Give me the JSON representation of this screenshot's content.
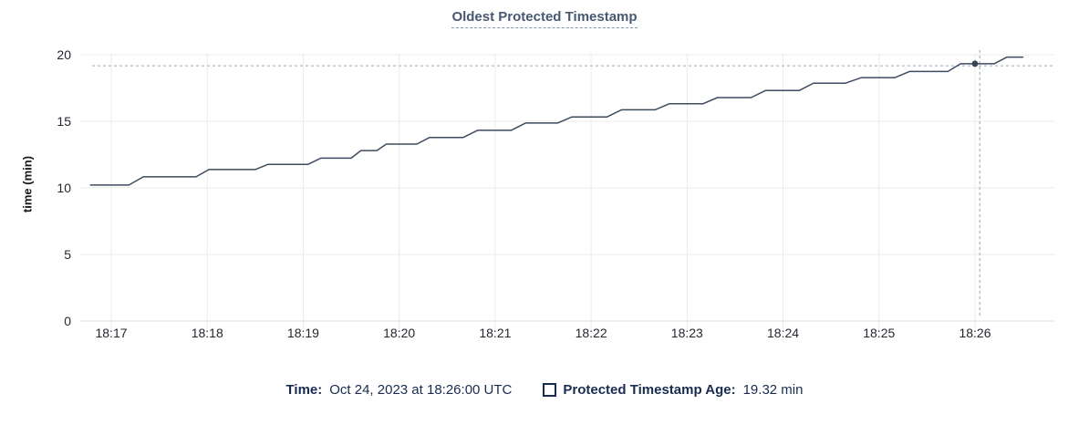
{
  "title": "Oldest Protected Timestamp",
  "y_axis": {
    "label": "time (min)",
    "ticks": [
      0,
      5,
      10,
      15,
      20
    ]
  },
  "x_axis": {
    "ticks": [
      {
        "t": 0,
        "label": "18:17"
      },
      {
        "t": 60,
        "label": "18:18"
      },
      {
        "t": 120,
        "label": "18:19"
      },
      {
        "t": 180,
        "label": "18:20"
      },
      {
        "t": 240,
        "label": "18:21"
      },
      {
        "t": 300,
        "label": "18:22"
      },
      {
        "t": 360,
        "label": "18:23"
      },
      {
        "t": 420,
        "label": "18:24"
      },
      {
        "t": 480,
        "label": "18:25"
      },
      {
        "t": 540,
        "label": "18:26"
      }
    ]
  },
  "tooltip": {
    "time_label": "Time:",
    "time_value": "Oct 24, 2023 at 18:26:00 UTC",
    "series_label": "Protected Timestamp Age:",
    "series_value": "19.32 min"
  },
  "chart_data": {
    "type": "line",
    "title": "Oldest Protected Timestamp",
    "xlabel": "",
    "ylabel": "time (min)",
    "ylim": [
      0,
      20
    ],
    "grid": true,
    "x_tick_labels": [
      "18:17",
      "18:18",
      "18:19",
      "18:20",
      "18:21",
      "18:22",
      "18:23",
      "18:24",
      "18:25",
      "18:26"
    ],
    "x_unit": "seconds_from_18:17:00_UTC",
    "series": [
      {
        "name": "Protected Timestamp Age",
        "unit": "min",
        "points": [
          [
            -13,
            10.21
          ],
          [
            11,
            10.21
          ],
          [
            20,
            10.83
          ],
          [
            53,
            10.83
          ],
          [
            61,
            11.38
          ],
          [
            90,
            11.38
          ],
          [
            98,
            11.77
          ],
          [
            123,
            11.77
          ],
          [
            131,
            12.23
          ],
          [
            150,
            12.23
          ],
          [
            156,
            12.8
          ],
          [
            166,
            12.8
          ],
          [
            172,
            13.29
          ],
          [
            191,
            13.29
          ],
          [
            199,
            13.79
          ],
          [
            220,
            13.79
          ],
          [
            229,
            14.32
          ],
          [
            250,
            14.32
          ],
          [
            259,
            14.87
          ],
          [
            279,
            14.87
          ],
          [
            288,
            15.33
          ],
          [
            310,
            15.33
          ],
          [
            319,
            15.86
          ],
          [
            340,
            15.86
          ],
          [
            349,
            16.32
          ],
          [
            370,
            16.32
          ],
          [
            379,
            16.78
          ],
          [
            400,
            16.78
          ],
          [
            409,
            17.31
          ],
          [
            430,
            17.31
          ],
          [
            439,
            17.86
          ],
          [
            459,
            17.86
          ],
          [
            469,
            18.28
          ],
          [
            490,
            18.28
          ],
          [
            499,
            18.74
          ],
          [
            523,
            18.74
          ],
          [
            531,
            19.32
          ],
          [
            552,
            19.32
          ],
          [
            560,
            19.82
          ],
          [
            570,
            19.82
          ]
        ]
      }
    ],
    "hover_point": {
      "t_sec": 540,
      "value": 19.32
    },
    "crosshair": {
      "t_sec": 543,
      "value": 19.17
    }
  },
  "colors": {
    "line": "#3f4b60",
    "dot": "#394455",
    "title": "#475872",
    "legend_text": "#182c50",
    "crosshair": "#a9bbc7",
    "grid": "#ebebed",
    "axis": "#dcdcdf",
    "tick_text": "#24272e"
  }
}
